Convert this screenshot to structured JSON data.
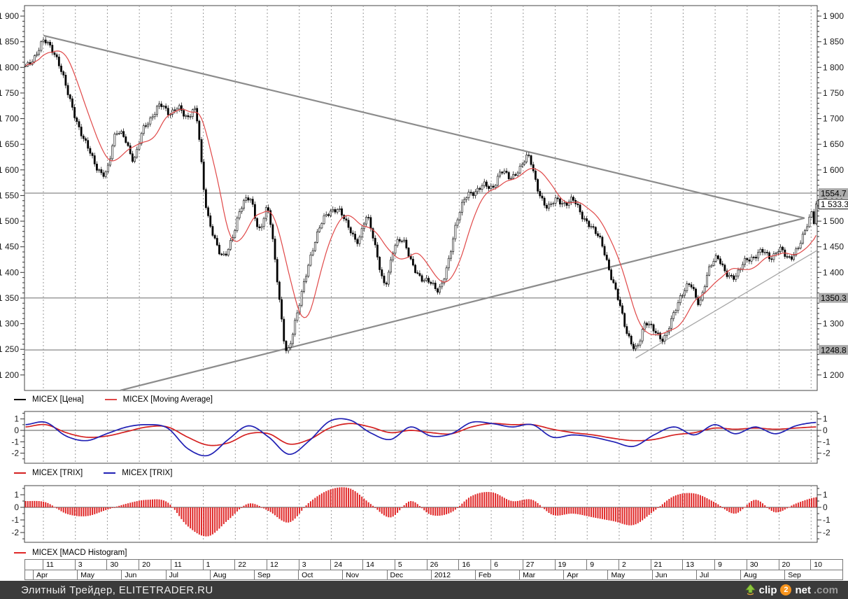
{
  "chart_data": [
    {
      "type": "candlestick",
      "name": "price-panel",
      "instrument": "MICEX",
      "series": [
        {
          "name": "MICEX [Цена]",
          "style": "candlestick",
          "color": "#000000"
        },
        {
          "name": "MICEX [Moving Average]",
          "style": "line",
          "color": "#e04848",
          "period": 13
        }
      ],
      "x_axis": {
        "start": "Apr 2011",
        "end": "Sep 2012"
      },
      "ylim": [
        1170,
        1920
      ],
      "ytick_step": 50,
      "ytick_minor_step": 10,
      "ytick_label_example": "1 900",
      "weekly_closes": [
        1800,
        1820,
        1855,
        1830,
        1790,
        1735,
        1680,
        1640,
        1600,
        1600,
        1670,
        1660,
        1620,
        1680,
        1700,
        1725,
        1710,
        1725,
        1700,
        1705,
        1540,
        1470,
        1430,
        1465,
        1530,
        1545,
        1480,
        1520,
        1390,
        1250,
        1300,
        1380,
        1450,
        1500,
        1515,
        1520,
        1490,
        1460,
        1505,
        1445,
        1380,
        1445,
        1460,
        1420,
        1390,
        1380,
        1365,
        1420,
        1500,
        1545,
        1555,
        1575,
        1565,
        1595,
        1585,
        1605,
        1625,
        1560,
        1530,
        1545,
        1530,
        1540,
        1510,
        1490,
        1460,
        1400,
        1350,
        1280,
        1250,
        1300,
        1290,
        1270,
        1310,
        1355,
        1380,
        1340,
        1400,
        1430,
        1400,
        1390,
        1420,
        1430,
        1445,
        1425,
        1445,
        1430,
        1450,
        1490,
        1533.3
      ],
      "last_price": {
        "value": 1533.3,
        "label": "1 533.3"
      },
      "price_levels": [
        {
          "value": 1554.7,
          "label": "1554.7"
        },
        {
          "value": 1350.3,
          "label": "1350.3"
        },
        {
          "value": 1248.8,
          "label": "1248.8"
        }
      ],
      "trendlines": [
        {
          "name": "descending-resistance",
          "from": {
            "xf": 0.024,
            "price": 1862
          },
          "to": {
            "xf": 0.984,
            "price": 1506
          },
          "color": "#8c8c8c",
          "width": 2.2
        },
        {
          "name": "rising-support",
          "from": {
            "xf": 0.121,
            "price": 1170
          },
          "to": {
            "xf": 0.984,
            "price": 1506
          },
          "color": "#8c8c8c",
          "width": 2.2
        },
        {
          "name": "short-term-support",
          "from": {
            "xf": 0.771,
            "price": 1233
          },
          "to": {
            "xf": 1.0,
            "price": 1443
          },
          "color": "#a6a6a6",
          "width": 1.3
        }
      ]
    },
    {
      "type": "line",
      "name": "trix-panel",
      "ylim": [
        -2.9,
        1.75
      ],
      "yticks": [
        1,
        0,
        -1,
        -2
      ],
      "series": [
        {
          "name": "MICEX [TRIX]",
          "color": "#d42020",
          "values": [
            0.3,
            0.5,
            -0.2,
            -0.6,
            -0.5,
            -0.1,
            0.3,
            0.3,
            -0.6,
            -1.3,
            -1.1,
            -0.3,
            -0.3,
            -1.2,
            -0.8,
            0.2,
            0.6,
            0.3,
            -0.2,
            0.0,
            -0.2,
            -0.3,
            0.3,
            0.6,
            0.5,
            0.5,
            0.1,
            -0.2,
            -0.4,
            -0.7,
            -0.9,
            -0.8,
            -0.4,
            -0.2,
            0.2,
            0.1,
            0.2,
            0.1,
            0.2,
            0.3
          ]
        },
        {
          "name": "MICEX [TRIX]",
          "color": "#2020b4",
          "values": [
            0.5,
            0.7,
            -0.5,
            -0.9,
            -0.3,
            0.3,
            0.5,
            0.2,
            -1.6,
            -2.2,
            -0.8,
            0.4,
            -0.6,
            -2.1,
            -0.9,
            0.8,
            0.9,
            -0.2,
            -0.8,
            0.3,
            -0.5,
            -0.3,
            0.7,
            0.6,
            0.3,
            0.5,
            -0.6,
            -0.4,
            -0.6,
            -1.0,
            -1.4,
            -0.4,
            0.3,
            -0.4,
            0.5,
            -0.3,
            0.3,
            -0.3,
            0.4,
            0.7
          ]
        }
      ]
    },
    {
      "type": "bar",
      "name": "macd-panel",
      "ylim": [
        -2.8,
        1.9
      ],
      "yticks": [
        1,
        0,
        -1,
        -2
      ],
      "series": [
        {
          "name": "MICEX [MACD Histogram]",
          "color": "#e02828",
          "values": [
            0.5,
            0.4,
            -0.5,
            -0.7,
            -0.2,
            0.3,
            0.6,
            0.4,
            -1.5,
            -2.3,
            -1.0,
            0.3,
            -0.3,
            -1.2,
            0.4,
            1.4,
            1.5,
            0.3,
            -0.8,
            0.5,
            -0.6,
            -0.4,
            0.9,
            1.2,
            0.5,
            0.6,
            -0.6,
            -0.5,
            -0.8,
            -1.1,
            -1.4,
            -0.3,
            0.9,
            1.1,
            0.4,
            -0.5,
            0.6,
            -0.4,
            0.3,
            0.8
          ]
        }
      ]
    }
  ],
  "legends": {
    "price": [
      {
        "label": "MICEX [Цена]",
        "color": "#000000"
      },
      {
        "label": "MICEX [Moving Average]",
        "color": "#e04848"
      }
    ],
    "trix": [
      {
        "label": "MICEX [TRIX]",
        "color": "#d42020"
      },
      {
        "label": "MICEX [TRIX]",
        "color": "#2020b4"
      }
    ],
    "macd": [
      {
        "label": "MICEX [MACD Histogram]",
        "color": "#e02828"
      }
    ]
  },
  "time_axis": {
    "day_labels": [
      "11",
      "3",
      "30",
      "20",
      "11",
      "1",
      "22",
      "12",
      "3",
      "24",
      "14",
      "5",
      "26",
      "16",
      "6",
      "27",
      "19",
      "9",
      "2",
      "21",
      "13",
      "9",
      "30",
      "20",
      "10"
    ],
    "month_labels": [
      "Apr",
      "May",
      "Jun",
      "Jul",
      "Aug",
      "Sep",
      "Oct",
      "Nov",
      "Dec",
      "2012",
      "Feb",
      "Mar",
      "Apr",
      "May",
      "Jun",
      "Jul",
      "Aug",
      "Sep"
    ]
  },
  "footer": {
    "left_text": "Элитный Трейдер, ELITETRADER.RU",
    "logo": {
      "clip": "clip",
      "two": "2",
      "net": "net",
      "com": ".com"
    }
  }
}
